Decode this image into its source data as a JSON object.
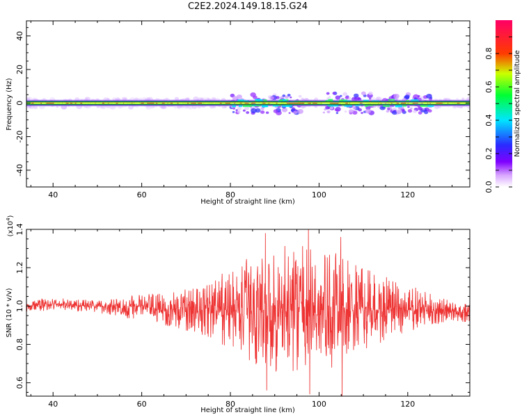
{
  "figure_title": "C2E2.2024.149.18.15.G24",
  "chart_data": [
    {
      "type": "heatmap",
      "title": "C2E2.2024.149.18.15.G24",
      "xlabel": "Height of straight line (km)",
      "ylabel": "Frequency (Hz)",
      "xlim": [
        34,
        134
      ],
      "ylim": [
        -50,
        49
      ],
      "xticks": [
        40,
        60,
        80,
        100,
        120
      ],
      "yticks": [
        -40,
        -20,
        0,
        20,
        40
      ],
      "colorbar": {
        "label": "Normalized spectral amplitude",
        "range": [
          0.0,
          1.0
        ],
        "ticks": [
          0.0,
          0.2,
          0.4,
          0.6,
          0.8
        ],
        "colormap": [
          "#ffffff",
          "#a020f0",
          "#3333ff",
          "#00ffff",
          "#00ff00",
          "#ffff00",
          "#ff0000",
          "#ff0066"
        ]
      },
      "line_center_frequency_hz": 0,
      "band_halfwidth_hz": 2,
      "noise_regions_km": [
        [
          80,
          96
        ],
        [
          100,
          112
        ],
        [
          114,
          126
        ]
      ],
      "noise_spread_hz": 6
    },
    {
      "type": "line",
      "xlabel": "Height of straight line (km)",
      "ylabel": "SNR (10 * v/v)",
      "y_scale_label": "(x10^4)",
      "xlim": [
        34,
        134
      ],
      "ylim": [
        0.53,
        1.4
      ],
      "xticks": [
        40,
        60,
        80,
        100,
        120
      ],
      "yticks": [
        0.6,
        0.8,
        1.0,
        1.2,
        1.4
      ],
      "ytick_labels": [
        "0.6",
        "0.8",
        "1.0",
        "1.2",
        "1.4"
      ],
      "line_color": "#ee3333",
      "profile_x": [
        34,
        40,
        50,
        55,
        60,
        65,
        70,
        75,
        80,
        85,
        90,
        95,
        100,
        105,
        110,
        115,
        120,
        125,
        130,
        134
      ],
      "profile_mean": [
        1.0,
        1.01,
        1.0,
        0.99,
        1.0,
        0.98,
        0.98,
        0.98,
        0.98,
        0.98,
        0.98,
        0.99,
        0.98,
        0.97,
        0.98,
        0.98,
        0.98,
        0.98,
        0.97,
        0.97
      ],
      "profile_amplitude": [
        0.03,
        0.03,
        0.03,
        0.05,
        0.06,
        0.08,
        0.1,
        0.14,
        0.19,
        0.26,
        0.3,
        0.3,
        0.3,
        0.27,
        0.2,
        0.16,
        0.12,
        0.08,
        0.05,
        0.05
      ],
      "peaks": [
        {
          "x": 87.9,
          "y": 1.38
        },
        {
          "x": 88.2,
          "y": 0.56
        },
        {
          "x": 97.6,
          "y": 1.4
        },
        {
          "x": 97.9,
          "y": 0.54
        },
        {
          "x": 104.9,
          "y": 1.36
        },
        {
          "x": 105.2,
          "y": 0.53
        }
      ]
    }
  ]
}
